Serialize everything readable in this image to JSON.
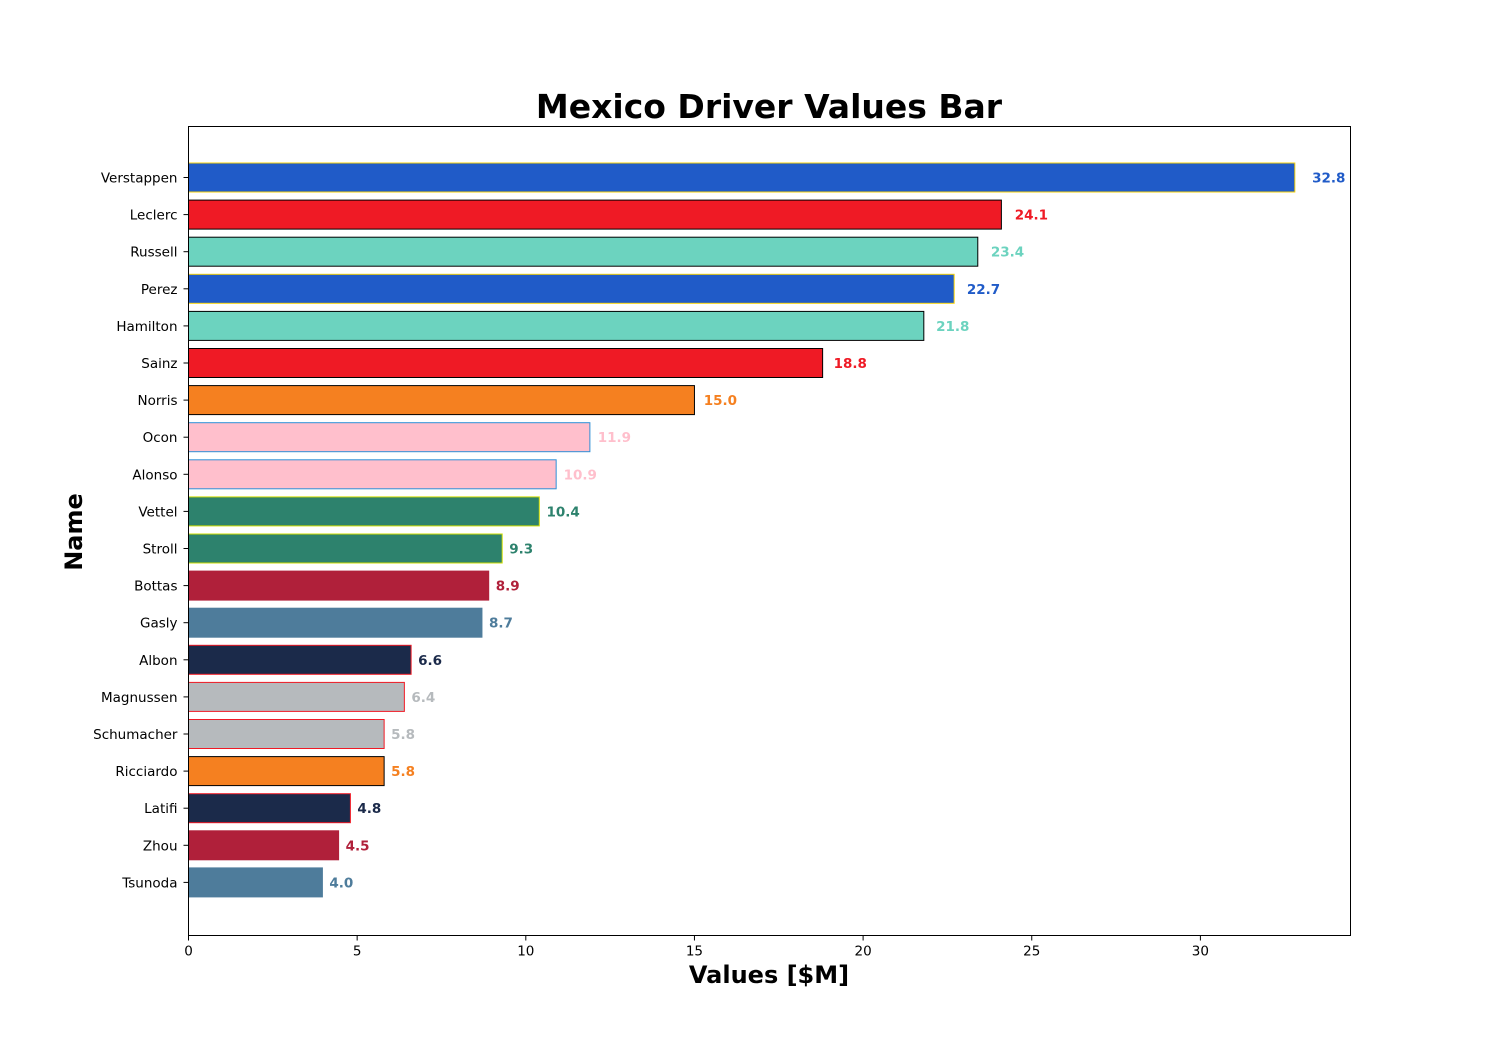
{
  "chart_data": {
    "type": "bar",
    "orientation": "horizontal",
    "title": "Mexico Driver Values Bar",
    "xlabel": "Values [$M]",
    "ylabel": "Name",
    "xlim": [
      0,
      34.45
    ],
    "xticks": [
      0,
      5,
      10,
      15,
      20,
      25,
      30
    ],
    "grid": false,
    "bars": [
      {
        "name": "Verstappen",
        "value": 32.8,
        "label": "32.8",
        "fill": "#205BC8",
        "edge": "#F5D20A"
      },
      {
        "name": "Leclerc",
        "value": 24.1,
        "label": "24.1",
        "fill": "#EF1A25",
        "edge": "#000000"
      },
      {
        "name": "Russell",
        "value": 23.4,
        "label": "23.4",
        "fill": "#6CD3BF",
        "edge": "#000000"
      },
      {
        "name": "Perez",
        "value": 22.7,
        "label": "22.7",
        "fill": "#205BC8",
        "edge": "#F5D20A"
      },
      {
        "name": "Hamilton",
        "value": 21.8,
        "label": "21.8",
        "fill": "#6CD3BF",
        "edge": "#000000"
      },
      {
        "name": "Sainz",
        "value": 18.8,
        "label": "18.8",
        "fill": "#EF1A25",
        "edge": "#000000"
      },
      {
        "name": "Norris",
        "value": 15.0,
        "label": "15.0",
        "fill": "#F58020",
        "edge": "#000000"
      },
      {
        "name": "Ocon",
        "value": 11.9,
        "label": "11.9",
        "fill": "#FFBFCC",
        "edge": "#2E8FD6"
      },
      {
        "name": "Alonso",
        "value": 10.9,
        "label": "10.9",
        "fill": "#FFBFCC",
        "edge": "#2E8FD6"
      },
      {
        "name": "Vettel",
        "value": 10.4,
        "label": "10.4",
        "fill": "#2D826D",
        "edge": "#CEDC00"
      },
      {
        "name": "Stroll",
        "value": 9.3,
        "label": "9.3",
        "fill": "#2D826D",
        "edge": "#CEDC00"
      },
      {
        "name": "Bottas",
        "value": 8.9,
        "label": "8.9",
        "fill": "#B0203A",
        "edge": "#B0203A"
      },
      {
        "name": "Gasly",
        "value": 8.7,
        "label": "8.7",
        "fill": "#4E7C9B",
        "edge": "#4E7C9B"
      },
      {
        "name": "Albon",
        "value": 6.6,
        "label": "6.6",
        "fill": "#1B2A4A",
        "edge": "#EF1A25"
      },
      {
        "name": "Magnussen",
        "value": 6.4,
        "label": "6.4",
        "fill": "#B6BABD",
        "edge": "#EF1A25"
      },
      {
        "name": "Schumacher",
        "value": 5.8,
        "label": "5.8",
        "fill": "#B6BABD",
        "edge": "#EF1A25"
      },
      {
        "name": "Ricciardo",
        "value": 5.8,
        "label": "5.8",
        "fill": "#F58020",
        "edge": "#000000"
      },
      {
        "name": "Latifi",
        "value": 4.8,
        "label": "4.8",
        "fill": "#1B2A4A",
        "edge": "#EF1A25"
      },
      {
        "name": "Zhou",
        "value": 4.45,
        "label": "4.5",
        "fill": "#B0203A",
        "edge": "#B0203A"
      },
      {
        "name": "Tsunoda",
        "value": 3.97,
        "label": "4.0",
        "fill": "#4E7C9B",
        "edge": "#4E7C9B"
      }
    ]
  }
}
